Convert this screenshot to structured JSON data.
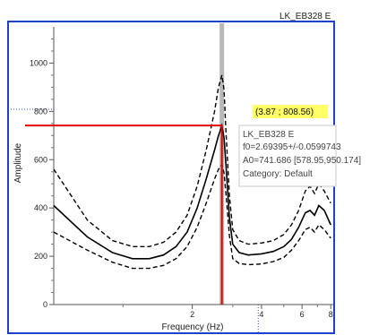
{
  "chart_data": {
    "type": "line",
    "title": "LK_EB328 E",
    "xlabel": "Frequency (Hz)",
    "ylabel": "Amplitude",
    "xscale": "log",
    "xlim": [
      0.5,
      8.2
    ],
    "ylim": [
      0,
      1150
    ],
    "x_ticks": [
      2,
      4,
      6,
      8
    ],
    "y_ticks": [
      0,
      200,
      400,
      600,
      800,
      1000
    ],
    "grid": false,
    "colors": {
      "frame": "#1f3fcf",
      "curve": "#000000",
      "marker": "#e00000",
      "peak_band": "#b8b8b8",
      "coord_highlight": "#ffff66",
      "dotted_ref": "#3050d0"
    },
    "x": [
      0.5,
      0.7,
      0.9,
      1.1,
      1.3,
      1.5,
      1.7,
      1.9,
      2.1,
      2.3,
      2.5,
      2.6,
      2.69,
      2.75,
      2.8,
      2.9,
      3.0,
      3.2,
      3.5,
      4.0,
      4.5,
      5.0,
      5.4,
      5.8,
      6.2,
      6.5,
      6.8,
      7.1,
      7.5,
      8.0
    ],
    "series": [
      {
        "style": "solid",
        "values": [
          410,
          280,
          215,
          190,
          190,
          205,
          240,
          300,
          400,
          520,
          640,
          700,
          741,
          690,
          580,
          360,
          250,
          215,
          205,
          210,
          220,
          240,
          270,
          320,
          380,
          390,
          370,
          410,
          390,
          330
        ]
      },
      {
        "style": "dashed",
        "values": [
          560,
          350,
          265,
          240,
          240,
          258,
          300,
          370,
          490,
          640,
          800,
          900,
          950,
          890,
          720,
          450,
          310,
          265,
          250,
          255,
          265,
          290,
          330,
          390,
          470,
          490,
          460,
          500,
          470,
          420
        ]
      },
      {
        "style": "dashed",
        "values": [
          300,
          225,
          175,
          150,
          150,
          162,
          190,
          240,
          320,
          420,
          520,
          560,
          580,
          545,
          460,
          285,
          190,
          170,
          165,
          168,
          178,
          195,
          225,
          265,
          310,
          320,
          300,
          330,
          310,
          275
        ]
      }
    ],
    "marker": {
      "x": 2.69,
      "y": 741.686
    },
    "cursor_readout": "(3.87 ; 808.56)",
    "tooltip": {
      "lines": [
        "LK_EB328 E",
        "f0=2.69395+/-0.0599743",
        "A0=741.686 [578.95,950.174]",
        "Category: Default"
      ]
    }
  }
}
